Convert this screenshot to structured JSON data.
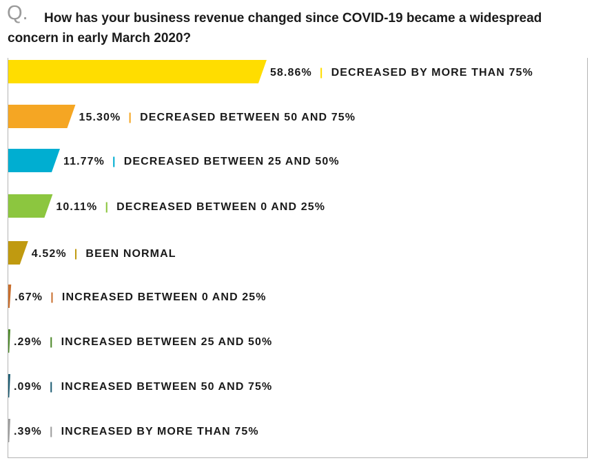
{
  "question": {
    "letter": "Q.",
    "text": "How has your business revenue changed since COVID-19 became a widespread concern in early March 2020?"
  },
  "chart_data": {
    "type": "bar",
    "orientation": "horizontal",
    "title": "How has your business revenue changed since COVID-19 became a widespread concern in early March 2020?",
    "xlabel": "",
    "ylabel": "",
    "grid": false,
    "legend": "none",
    "categories": [
      "DECREASED BY MORE THAN 75%",
      "DECREASED BETWEEN 50 AND 75%",
      "DECREASED BETWEEN 25 AND 50%",
      "DECREASED BETWEEN 0 AND 25%",
      "BEEN NORMAL",
      "INCREASED BETWEEN 0 AND 25%",
      "INCREASED BETWEEN 25 AND 50%",
      "INCREASED BETWEEN 50 AND 75%",
      "INCREASED BY MORE THAN 75%"
    ],
    "values": [
      58.86,
      15.3,
      11.77,
      10.11,
      4.52,
      0.67,
      0.29,
      0.09,
      0.39
    ],
    "value_labels": [
      "58.86%",
      "15.30%",
      "11.77%",
      "10.11%",
      "4.52%",
      ".67%",
      ".29%",
      ".09%",
      ".39%"
    ],
    "separator": "|",
    "colors": [
      "#ffdd00",
      "#f5a623",
      "#00aed1",
      "#8cc63f",
      "#c09a10",
      "#c96f2e",
      "#4f8a2c",
      "#1f5e74",
      "#9e9e9e"
    ]
  }
}
